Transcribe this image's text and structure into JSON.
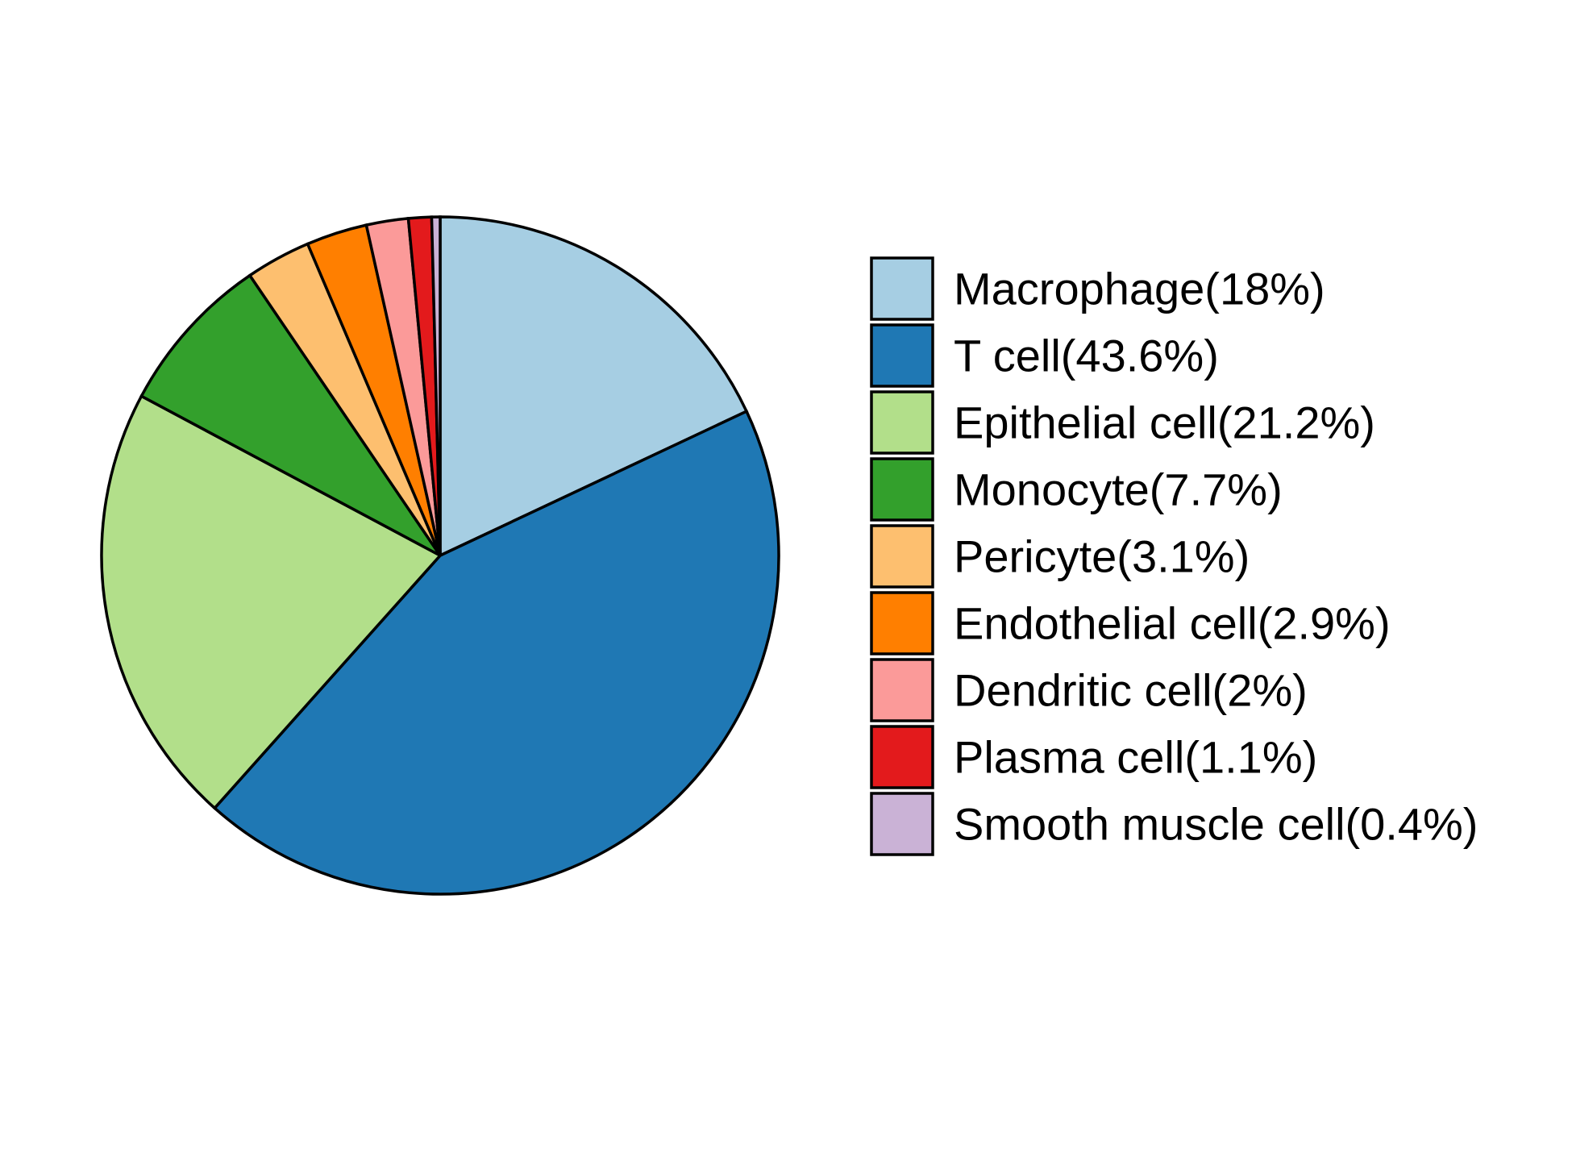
{
  "chart_data": {
    "type": "pie",
    "start_angle": "12 o'clock",
    "direction": "clockwise",
    "legend_position": "right",
    "slices": [
      {
        "label": "Macrophage(18%)",
        "name": "Macrophage",
        "value": 18.0,
        "color": "#A6CEE3"
      },
      {
        "label": "T cell(43.6%)",
        "name": "T cell",
        "value": 43.6,
        "color": "#1F78B4"
      },
      {
        "label": "Epithelial cell(21.2%)",
        "name": "Epithelial cell",
        "value": 21.2,
        "color": "#B2DF8A"
      },
      {
        "label": "Monocyte(7.7%)",
        "name": "Monocyte",
        "value": 7.7,
        "color": "#33A02C"
      },
      {
        "label": "Pericyte(3.1%)",
        "name": "Pericyte",
        "value": 3.1,
        "color": "#FDBF6F"
      },
      {
        "label": "Endothelial cell(2.9%)",
        "name": "Endothelial cell",
        "value": 2.9,
        "color": "#FF7F00"
      },
      {
        "label": "Dendritic cell(2%)",
        "name": "Dendritic cell",
        "value": 2.0,
        "color": "#FB9A99"
      },
      {
        "label": "Plasma cell(1.1%)",
        "name": "Plasma cell",
        "value": 1.1,
        "color": "#E31A1C"
      },
      {
        "label": "Smooth muscle cell(0.4%)",
        "name": "Smooth muscle cell",
        "value": 0.4,
        "color": "#CAB2D6"
      }
    ]
  }
}
